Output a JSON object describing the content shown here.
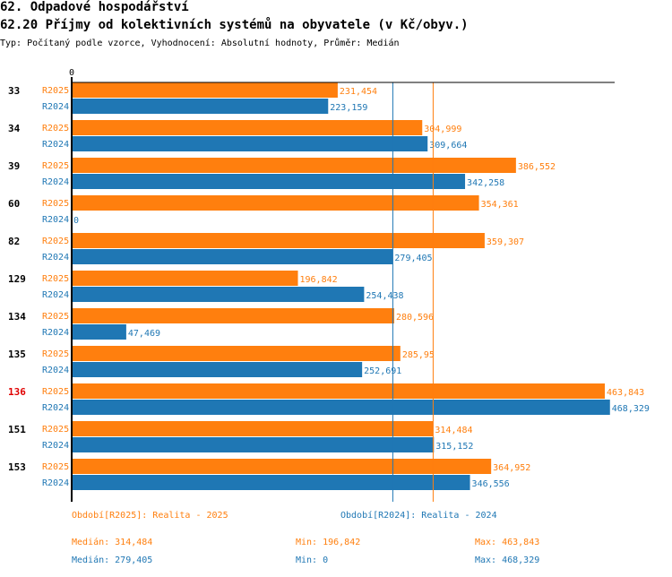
{
  "header": {
    "section": "62. Odpadové hospodářství",
    "title": "62.20 Příjmy od kolektivních systémů na obyvatele (v Kč/obyv.)",
    "subtitle": "Typ: Počítaný podle vzorce, Vyhodnocení: Absolutní hodnoty, Průměr: Medián"
  },
  "chart_data": {
    "type": "bar",
    "orientation": "horizontal",
    "axis_zero_label": "0",
    "xlim": [
      0,
      470
    ],
    "categories": [
      "33",
      "34",
      "39",
      "60",
      "82",
      "129",
      "134",
      "135",
      "136",
      "151",
      "153"
    ],
    "highlight_category": "136",
    "series": [
      {
        "name": "R2025",
        "color": "#ff7f0e",
        "values": [
          231.454,
          304.999,
          386.552,
          354.361,
          359.307,
          196.842,
          280.596,
          285.95,
          463.843,
          314.484,
          364.952
        ],
        "labels": [
          "231,454",
          "304,999",
          "386,552",
          "354,361",
          "359,307",
          "196,842",
          "280,596",
          "285,95",
          "463,843",
          "314,484",
          "364,952"
        ],
        "median": 314.484
      },
      {
        "name": "R2024",
        "color": "#1f77b4",
        "values": [
          223.159,
          309.664,
          342.258,
          0,
          279.405,
          254.438,
          47.469,
          252.691,
          468.329,
          315.152,
          346.556
        ],
        "labels": [
          "223,159",
          "309,664",
          "342,258",
          "0",
          "279,405",
          "254,438",
          "47,469",
          "252,691",
          "468,329",
          "315,152",
          "346,556"
        ],
        "median": 279.405
      }
    ]
  },
  "legend": {
    "r2025": {
      "title": "Období[R2025]: Realita - 2025",
      "median": "Medián: 314,484",
      "min": "Min: 196,842",
      "max": "Max: 463,843"
    },
    "r2024": {
      "title": "Období[R2024]: Realita - 2024",
      "median": "Medián: 279,405",
      "min": "Min: 0",
      "max": "Max: 468,329"
    }
  }
}
